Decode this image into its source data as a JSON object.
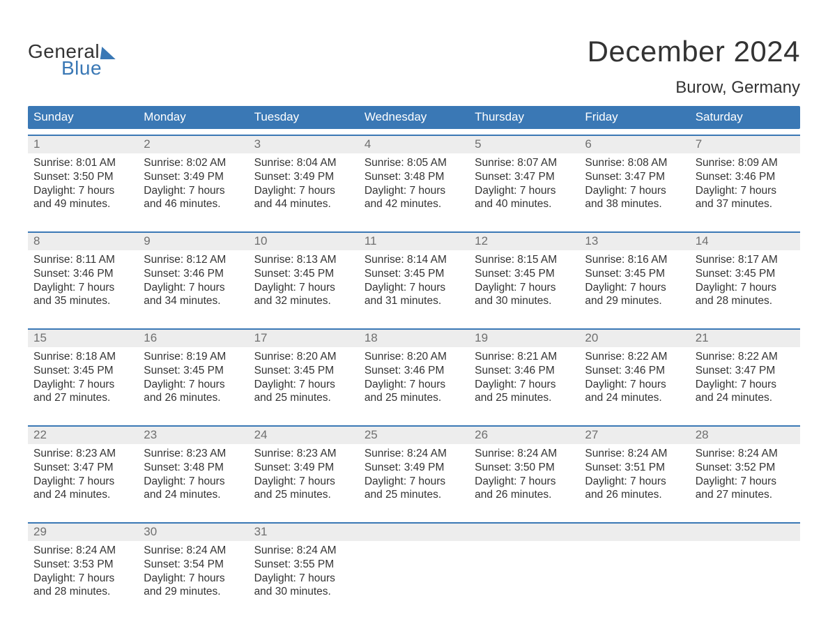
{
  "logo": {
    "word1": "General",
    "word2": "Blue"
  },
  "title": "December 2024",
  "location": "Burow, Germany",
  "colors": {
    "header_bg": "#3a78b5",
    "header_text": "#ffffff",
    "daynum_bg": "#ededed",
    "daynum_text": "#6f6f6f",
    "body_text": "#333333",
    "week_border": "#3a78b5",
    "page_bg": "#ffffff",
    "logo_accent": "#3a78b5"
  },
  "fonts": {
    "title_size_pt": 32,
    "location_size_pt": 18,
    "header_size_pt": 13,
    "daynum_size_pt": 13,
    "body_size_pt": 12,
    "logo_size_pt": 21
  },
  "day_headers": [
    "Sunday",
    "Monday",
    "Tuesday",
    "Wednesday",
    "Thursday",
    "Friday",
    "Saturday"
  ],
  "weeks": [
    [
      {
        "num": "1",
        "l1": "Sunrise: 8:01 AM",
        "l2": "Sunset: 3:50 PM",
        "l3": "Daylight: 7 hours",
        "l4": "and 49 minutes."
      },
      {
        "num": "2",
        "l1": "Sunrise: 8:02 AM",
        "l2": "Sunset: 3:49 PM",
        "l3": "Daylight: 7 hours",
        "l4": "and 46 minutes."
      },
      {
        "num": "3",
        "l1": "Sunrise: 8:04 AM",
        "l2": "Sunset: 3:49 PM",
        "l3": "Daylight: 7 hours",
        "l4": "and 44 minutes."
      },
      {
        "num": "4",
        "l1": "Sunrise: 8:05 AM",
        "l2": "Sunset: 3:48 PM",
        "l3": "Daylight: 7 hours",
        "l4": "and 42 minutes."
      },
      {
        "num": "5",
        "l1": "Sunrise: 8:07 AM",
        "l2": "Sunset: 3:47 PM",
        "l3": "Daylight: 7 hours",
        "l4": "and 40 minutes."
      },
      {
        "num": "6",
        "l1": "Sunrise: 8:08 AM",
        "l2": "Sunset: 3:47 PM",
        "l3": "Daylight: 7 hours",
        "l4": "and 38 minutes."
      },
      {
        "num": "7",
        "l1": "Sunrise: 8:09 AM",
        "l2": "Sunset: 3:46 PM",
        "l3": "Daylight: 7 hours",
        "l4": "and 37 minutes."
      }
    ],
    [
      {
        "num": "8",
        "l1": "Sunrise: 8:11 AM",
        "l2": "Sunset: 3:46 PM",
        "l3": "Daylight: 7 hours",
        "l4": "and 35 minutes."
      },
      {
        "num": "9",
        "l1": "Sunrise: 8:12 AM",
        "l2": "Sunset: 3:46 PM",
        "l3": "Daylight: 7 hours",
        "l4": "and 34 minutes."
      },
      {
        "num": "10",
        "l1": "Sunrise: 8:13 AM",
        "l2": "Sunset: 3:45 PM",
        "l3": "Daylight: 7 hours",
        "l4": "and 32 minutes."
      },
      {
        "num": "11",
        "l1": "Sunrise: 8:14 AM",
        "l2": "Sunset: 3:45 PM",
        "l3": "Daylight: 7 hours",
        "l4": "and 31 minutes."
      },
      {
        "num": "12",
        "l1": "Sunrise: 8:15 AM",
        "l2": "Sunset: 3:45 PM",
        "l3": "Daylight: 7 hours",
        "l4": "and 30 minutes."
      },
      {
        "num": "13",
        "l1": "Sunrise: 8:16 AM",
        "l2": "Sunset: 3:45 PM",
        "l3": "Daylight: 7 hours",
        "l4": "and 29 minutes."
      },
      {
        "num": "14",
        "l1": "Sunrise: 8:17 AM",
        "l2": "Sunset: 3:45 PM",
        "l3": "Daylight: 7 hours",
        "l4": "and 28 minutes."
      }
    ],
    [
      {
        "num": "15",
        "l1": "Sunrise: 8:18 AM",
        "l2": "Sunset: 3:45 PM",
        "l3": "Daylight: 7 hours",
        "l4": "and 27 minutes."
      },
      {
        "num": "16",
        "l1": "Sunrise: 8:19 AM",
        "l2": "Sunset: 3:45 PM",
        "l3": "Daylight: 7 hours",
        "l4": "and 26 minutes."
      },
      {
        "num": "17",
        "l1": "Sunrise: 8:20 AM",
        "l2": "Sunset: 3:45 PM",
        "l3": "Daylight: 7 hours",
        "l4": "and 25 minutes."
      },
      {
        "num": "18",
        "l1": "Sunrise: 8:20 AM",
        "l2": "Sunset: 3:46 PM",
        "l3": "Daylight: 7 hours",
        "l4": "and 25 minutes."
      },
      {
        "num": "19",
        "l1": "Sunrise: 8:21 AM",
        "l2": "Sunset: 3:46 PM",
        "l3": "Daylight: 7 hours",
        "l4": "and 25 minutes."
      },
      {
        "num": "20",
        "l1": "Sunrise: 8:22 AM",
        "l2": "Sunset: 3:46 PM",
        "l3": "Daylight: 7 hours",
        "l4": "and 24 minutes."
      },
      {
        "num": "21",
        "l1": "Sunrise: 8:22 AM",
        "l2": "Sunset: 3:47 PM",
        "l3": "Daylight: 7 hours",
        "l4": "and 24 minutes."
      }
    ],
    [
      {
        "num": "22",
        "l1": "Sunrise: 8:23 AM",
        "l2": "Sunset: 3:47 PM",
        "l3": "Daylight: 7 hours",
        "l4": "and 24 minutes."
      },
      {
        "num": "23",
        "l1": "Sunrise: 8:23 AM",
        "l2": "Sunset: 3:48 PM",
        "l3": "Daylight: 7 hours",
        "l4": "and 24 minutes."
      },
      {
        "num": "24",
        "l1": "Sunrise: 8:23 AM",
        "l2": "Sunset: 3:49 PM",
        "l3": "Daylight: 7 hours",
        "l4": "and 25 minutes."
      },
      {
        "num": "25",
        "l1": "Sunrise: 8:24 AM",
        "l2": "Sunset: 3:49 PM",
        "l3": "Daylight: 7 hours",
        "l4": "and 25 minutes."
      },
      {
        "num": "26",
        "l1": "Sunrise: 8:24 AM",
        "l2": "Sunset: 3:50 PM",
        "l3": "Daylight: 7 hours",
        "l4": "and 26 minutes."
      },
      {
        "num": "27",
        "l1": "Sunrise: 8:24 AM",
        "l2": "Sunset: 3:51 PM",
        "l3": "Daylight: 7 hours",
        "l4": "and 26 minutes."
      },
      {
        "num": "28",
        "l1": "Sunrise: 8:24 AM",
        "l2": "Sunset: 3:52 PM",
        "l3": "Daylight: 7 hours",
        "l4": "and 27 minutes."
      }
    ],
    [
      {
        "num": "29",
        "l1": "Sunrise: 8:24 AM",
        "l2": "Sunset: 3:53 PM",
        "l3": "Daylight: 7 hours",
        "l4": "and 28 minutes."
      },
      {
        "num": "30",
        "l1": "Sunrise: 8:24 AM",
        "l2": "Sunset: 3:54 PM",
        "l3": "Daylight: 7 hours",
        "l4": "and 29 minutes."
      },
      {
        "num": "31",
        "l1": "Sunrise: 8:24 AM",
        "l2": "Sunset: 3:55 PM",
        "l3": "Daylight: 7 hours",
        "l4": "and 30 minutes."
      },
      null,
      null,
      null,
      null
    ]
  ]
}
